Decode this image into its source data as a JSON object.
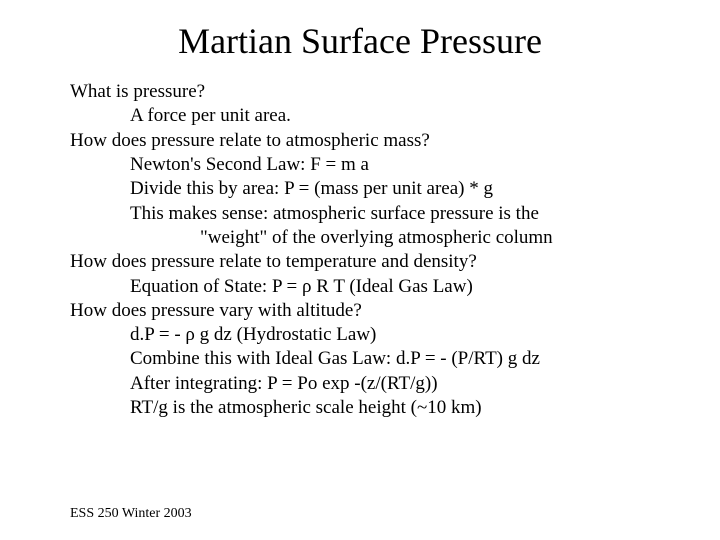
{
  "title": "Martian Surface Pressure",
  "lines": {
    "q1": "What is pressure?",
    "a1": "A force per unit area.",
    "q2": "How does pressure relate to atmospheric mass?",
    "a2a": "Newton's Second Law: F = m a",
    "a2b": "Divide this by area:  P = (mass per unit area) * g",
    "a2c": "This makes sense: atmospheric surface pressure is the",
    "a2d": "\"weight\" of the overlying atmospheric column",
    "q3": "How does pressure relate to temperature and density?",
    "a3a": "Equation of State: P = ρ R T  (Ideal Gas Law)",
    "q4": "How does pressure vary with altitude?",
    "a4a": "d.P = - ρ g dz (Hydrostatic Law)",
    "a4b": "Combine this with Ideal Gas Law: d.P = - (P/RT) g dz",
    "a4c": "After integrating: P = Po exp -(z/(RT/g))",
    "a4d": "RT/g is the atmospheric scale height (~10 km)"
  },
  "footer": "ESS 250 Winter 2003",
  "style": {
    "background_color": "#ffffff",
    "text_color": "#000000",
    "title_fontsize": 36,
    "body_fontsize": 19,
    "footer_fontsize": 14,
    "font_family": "Times New Roman"
  }
}
